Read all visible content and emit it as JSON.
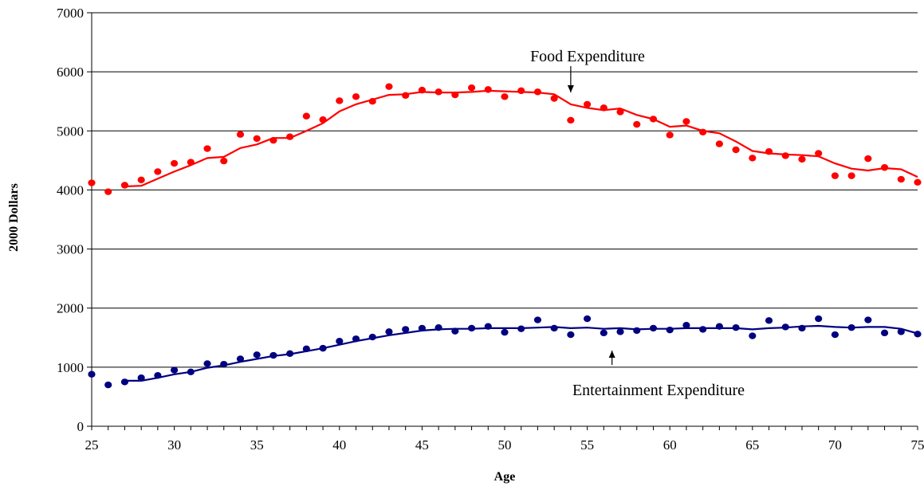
{
  "chart_data": {
    "type": "line",
    "title": "",
    "xlabel": "Age",
    "ylabel": "2000 Dollars",
    "xlim": [
      25,
      75
    ],
    "ylim": [
      0,
      7000
    ],
    "x_ticks": [
      "25",
      "30",
      "35",
      "40",
      "45",
      "50",
      "55",
      "60",
      "65",
      "70",
      "75"
    ],
    "y_ticks": [
      "0",
      "1000",
      "2000",
      "3000",
      "4000",
      "5000",
      "6000",
      "7000"
    ],
    "grid": true,
    "x": [
      25,
      26,
      27,
      28,
      29,
      30,
      31,
      32,
      33,
      34,
      35,
      36,
      37,
      38,
      39,
      40,
      41,
      42,
      43,
      44,
      45,
      46,
      47,
      48,
      49,
      50,
      51,
      52,
      53,
      54,
      55,
      56,
      57,
      58,
      59,
      60,
      61,
      62,
      63,
      64,
      65,
      66,
      67,
      68,
      69,
      70,
      71,
      72,
      73,
      74,
      75
    ],
    "series": [
      {
        "name": "Food Expenditure",
        "color": "#ff0000",
        "points": [
          4120,
          3970,
          4080,
          4170,
          4310,
          4450,
          4470,
          4700,
          4490,
          4940,
          4870,
          4840,
          4900,
          5250,
          5190,
          5510,
          5580,
          5500,
          5750,
          5600,
          5690,
          5660,
          5610,
          5730,
          5700,
          5580,
          5680,
          5660,
          5550,
          5180,
          5450,
          5390,
          5320,
          5110,
          5200,
          4930,
          5160,
          4980,
          4780,
          4680,
          4540,
          4650,
          4580,
          4520,
          4620,
          4240,
          4240,
          4530,
          4380,
          4180,
          4130
        ],
        "smoothed": [
          null,
          null,
          4060,
          4070,
          4190,
          4310,
          4420,
          4540,
          4560,
          4710,
          4770,
          4880,
          4880,
          5000,
          5130,
          5330,
          5450,
          5530,
          5610,
          5620,
          5660,
          5650,
          5650,
          5660,
          5680,
          5670,
          5660,
          5650,
          5620,
          5450,
          5390,
          5350,
          5380,
          5270,
          5200,
          5070,
          5090,
          5000,
          4960,
          4820,
          4660,
          4620,
          4600,
          4590,
          4570,
          4450,
          4360,
          4330,
          4370,
          4350,
          4220
        ]
      },
      {
        "name": "Entertainment Expenditure",
        "color": "#000080",
        "points": [
          880,
          700,
          750,
          820,
          860,
          950,
          920,
          1060,
          1050,
          1140,
          1210,
          1200,
          1230,
          1310,
          1320,
          1440,
          1480,
          1510,
          1600,
          1640,
          1660,
          1670,
          1610,
          1660,
          1690,
          1590,
          1650,
          1800,
          1660,
          1550,
          1820,
          1580,
          1600,
          1620,
          1660,
          1630,
          1710,
          1640,
          1690,
          1670,
          1530,
          1790,
          1680,
          1660,
          1820,
          1550,
          1670,
          1800,
          1580,
          1600,
          1560
        ],
        "smoothed": [
          null,
          null,
          770,
          770,
          820,
          880,
          920,
          990,
          1030,
          1090,
          1140,
          1190,
          1220,
          1270,
          1320,
          1380,
          1440,
          1490,
          1540,
          1580,
          1620,
          1640,
          1650,
          1650,
          1660,
          1660,
          1660,
          1670,
          1680,
          1660,
          1670,
          1650,
          1660,
          1640,
          1650,
          1650,
          1660,
          1660,
          1660,
          1660,
          1640,
          1660,
          1670,
          1690,
          1700,
          1680,
          1670,
          1680,
          1680,
          1650,
          1570
        ]
      }
    ],
    "annotations": [
      {
        "text": "Food Expenditure",
        "series": 0,
        "arrow_to_x": 54,
        "direction": "down"
      },
      {
        "text": "Entertainment Expenditure",
        "series": 1,
        "arrow_to_x": 56.5,
        "direction": "up"
      }
    ]
  }
}
